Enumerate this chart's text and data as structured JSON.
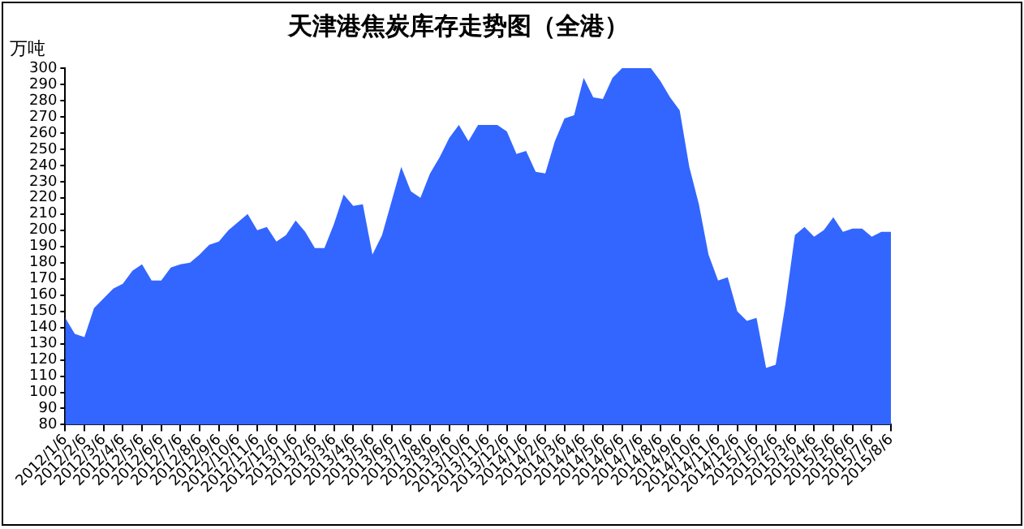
{
  "chart_data": {
    "type": "area",
    "title": "天津港焦炭库存走势图（全港）",
    "ylabel": "万吨",
    "categories": [
      "2012/1/6",
      null,
      "2012/2/6",
      null,
      "2012/3/6",
      null,
      "2012/4/6",
      null,
      "2012/5/6",
      null,
      "2012/6/6",
      null,
      "2012/7/6",
      null,
      "2012/8/6",
      null,
      "2012/9/6",
      null,
      "2012/10/6",
      null,
      "2012/11/6",
      null,
      "2012/12/6",
      null,
      "2013/1/6",
      null,
      "2013/2/6",
      null,
      "2013/3/6",
      null,
      "2013/4/6",
      null,
      "2013/5/6",
      null,
      "2013/6/6",
      null,
      "2013/7/6",
      null,
      "2013/8/6",
      null,
      "2013/9/6",
      null,
      "2013/10/6",
      null,
      "2013/11/6",
      null,
      "2013/12/6",
      null,
      "2014/1/6",
      null,
      "2014/2/6",
      null,
      "2014/3/6",
      null,
      "2014/4/6",
      null,
      "2014/5/6",
      null,
      "2014/6/6",
      null,
      "2014/7/6",
      null,
      "2014/8/6",
      null,
      "2014/9/6",
      null,
      "2014/10/6",
      null,
      "2014/11/6",
      null,
      "2014/12/6",
      null,
      "2015/1/6",
      null,
      "2015/2/6",
      null,
      "2015/3/6",
      null,
      "2015/4/6",
      null,
      "2015/5/6",
      null,
      "2015/6/6",
      null,
      "2015/7/6",
      null,
      "2015/8/6"
    ],
    "series": [
      {
        "color": "#3366ff",
        "values": [
          146,
          136,
          134,
          152,
          158,
          164,
          167,
          175,
          179,
          169,
          169,
          177,
          179,
          180,
          185,
          191,
          193,
          200,
          205,
          210,
          200,
          202,
          193,
          197,
          206,
          199,
          189,
          189,
          204,
          222,
          215,
          216,
          185,
          197,
          218,
          239,
          224,
          220,
          235,
          245,
          257,
          265,
          255,
          265,
          265,
          265,
          261,
          247,
          249,
          236,
          235,
          255,
          269,
          271,
          294,
          282,
          281,
          294,
          300,
          300,
          300,
          300,
          292,
          282,
          274,
          239,
          216,
          185,
          169,
          171,
          150,
          144,
          146,
          115,
          117,
          154,
          197,
          202,
          196,
          200,
          208,
          199,
          201,
          201,
          196,
          199,
          199
        ]
      }
    ],
    "ylim": [
      80,
      300
    ],
    "yticks": [
      80,
      90,
      100,
      110,
      120,
      130,
      140,
      150,
      160,
      170,
      180,
      190,
      200,
      210,
      220,
      230,
      240,
      250,
      260,
      270,
      280,
      290,
      300
    ],
    "grid": false,
    "legend": false
  }
}
